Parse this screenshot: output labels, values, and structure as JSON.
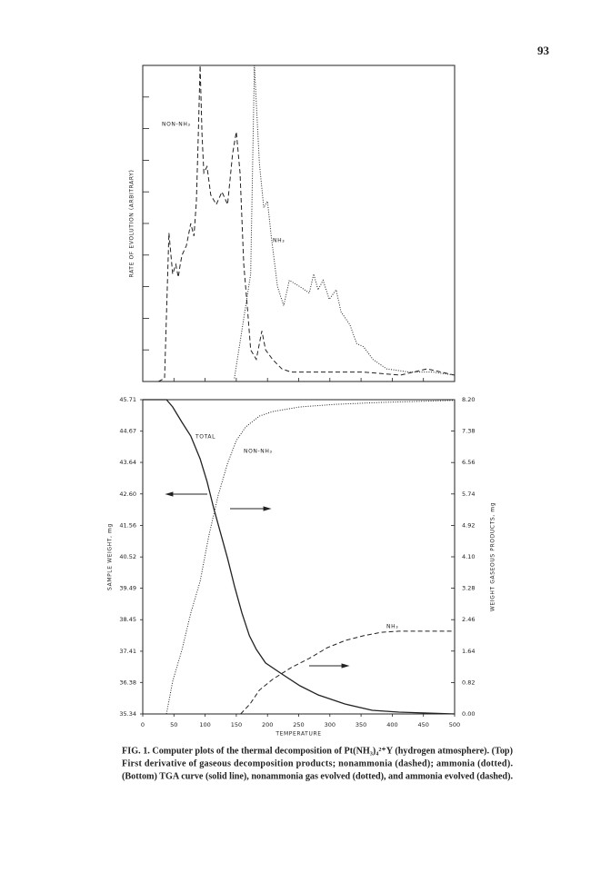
{
  "page_number": "93",
  "chart_data": [
    {
      "type": "line",
      "y_label": "RATE OF EVOLUTION (ARBITRARY)",
      "xlim": [
        0,
        500
      ],
      "xticks": [
        0,
        50,
        100,
        150,
        200,
        250,
        300,
        350,
        400,
        450,
        500
      ],
      "ylim": [
        0,
        100
      ],
      "yticks": [
        10,
        20,
        30,
        40,
        50,
        60,
        70,
        80,
        90
      ],
      "series": [
        {
          "name": "NON-NH₃",
          "color": "#222",
          "dash": "dashed",
          "x": [
            25,
            35,
            42,
            48,
            53,
            57,
            60,
            63,
            70,
            77,
            82,
            86,
            89,
            92,
            95,
            98,
            103,
            109,
            118,
            127,
            136,
            144,
            150,
            156,
            162,
            168,
            173,
            182,
            191,
            197,
            208,
            223,
            238,
            267,
            296,
            354,
            413,
            456,
            500
          ],
          "values": [
            0,
            1,
            47,
            34,
            37,
            33,
            37,
            40,
            43,
            50,
            46,
            57,
            78,
            100,
            78,
            66,
            68,
            59,
            56,
            60,
            56,
            72,
            79,
            66,
            37,
            23,
            10,
            7,
            16,
            10,
            7,
            4,
            3,
            3,
            3,
            3,
            2,
            4,
            2
          ]
        },
        {
          "name": "NH₃",
          "color": "#222",
          "dash": "dotted",
          "x": [
            147,
            162,
            173,
            179,
            187,
            194,
            200,
            206,
            216,
            226,
            235,
            252,
            267,
            274,
            281,
            289,
            299,
            310,
            318,
            332,
            343,
            354,
            369,
            391,
            427,
            464,
            500
          ],
          "values": [
            1,
            20,
            34,
            100,
            69,
            55,
            57,
            46,
            30,
            24,
            32,
            30,
            28,
            34,
            29,
            32,
            26,
            29,
            22,
            18,
            12,
            11,
            7,
            4,
            3,
            3,
            2
          ]
        }
      ]
    },
    {
      "type": "line",
      "x_label": "TEMPERATURE",
      "y_label": "SAMPLE WEIGHT, mg",
      "y2_label": "WEIGHT GASEOUS PRODUCTS, mg",
      "xlim": [
        0,
        500
      ],
      "xticks": [
        0,
        50,
        100,
        150,
        200,
        250,
        300,
        350,
        400,
        450,
        500
      ],
      "ylim": [
        35.34,
        45.71
      ],
      "yticks": [
        45.71,
        44.67,
        43.64,
        {
          "value": 42.6,
          "label": "42.60"
        },
        41.56,
        40.52,
        39.49,
        38.45,
        37.41,
        36.38,
        35.34
      ],
      "y2lim": [
        0,
        8.2
      ],
      "y2ticks": [
        {
          "value": 8.2,
          "label": "8.20"
        },
        7.38,
        6.56,
        5.74,
        4.92,
        {
          "value": 4.1,
          "label": "4.10"
        },
        3.28,
        2.46,
        1.64,
        0.82,
        {
          "value": 0,
          "label": "0.00"
        }
      ],
      "series": [
        {
          "name": "TOTAL",
          "color": "#222",
          "dash": "solid",
          "axis": "y",
          "x": [
            0,
            38,
            48,
            63,
            77,
            92,
            103,
            114,
            124,
            136,
            147,
            159,
            171,
            182,
            197,
            223,
            252,
            281,
            324,
            368,
            411,
            456,
            500
          ],
          "values": [
            45.71,
            45.71,
            45.47,
            44.96,
            44.51,
            43.76,
            43.01,
            42.11,
            41.36,
            40.47,
            39.57,
            38.67,
            37.92,
            37.47,
            37.02,
            36.66,
            36.27,
            35.97,
            35.67,
            35.46,
            35.4,
            35.37,
            35.34
          ]
        },
        {
          "name": "NON-NH₃",
          "color": "#222",
          "dash": "dotted",
          "axis": "y2",
          "x": [
            38,
            48,
            63,
            77,
            92,
            106,
            121,
            136,
            150,
            165,
            187,
            208,
            252,
            310,
            383,
            500
          ],
          "values": [
            0,
            0.85,
            1.68,
            2.63,
            3.46,
            4.65,
            5.71,
            6.54,
            7.13,
            7.49,
            7.77,
            7.89,
            8.01,
            8.08,
            8.13,
            8.18
          ]
        },
        {
          "name": "NH₃",
          "color": "#222",
          "dash": "dashed",
          "axis": "y2",
          "x": [
            157,
            172,
            187,
            208,
            238,
            267,
            296,
            325,
            354,
            383,
            411,
            500
          ],
          "values": [
            0,
            0.26,
            0.62,
            0.9,
            1.21,
            1.45,
            1.73,
            1.92,
            2.04,
            2.13,
            2.16,
            2.16
          ]
        }
      ]
    }
  ],
  "caption": [
    "FIG. 1. Computer plots of the thermal decomposition of Pt(NH₃)₄²⁺Y (hydrogen atmosphere). (Top)",
    "First derivative of gaseous decomposition products; nonammonia (dashed); ammonia (dotted).",
    "(Bottom) TGA curve (solid line), nonammonia gas evolved (dotted), and ammonia evolved (dashed)."
  ]
}
